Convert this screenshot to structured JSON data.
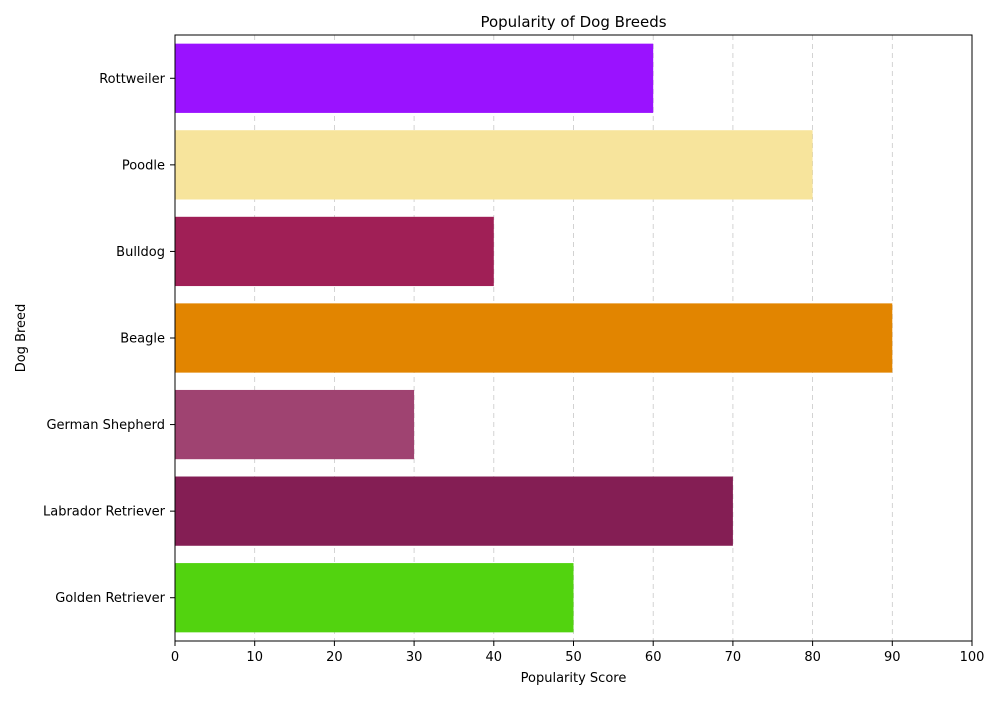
{
  "chart_data": {
    "type": "bar",
    "orientation": "horizontal",
    "title": "Popularity of Dog Breeds",
    "xlabel": "Popularity Score",
    "ylabel": "Dog Breed",
    "xlim": [
      0,
      100
    ],
    "xticks": [
      0,
      10,
      20,
      30,
      40,
      50,
      60,
      70,
      80,
      90,
      100
    ],
    "grid": "x-dashed",
    "categories": [
      "Golden Retriever",
      "Labrador Retriever",
      "German Shepherd",
      "Beagle",
      "Bulldog",
      "Poodle",
      "Rottweiler"
    ],
    "values": [
      50,
      70,
      30,
      90,
      40,
      80,
      60
    ],
    "colors": [
      "#52d30f",
      "#841e54",
      "#9f4371",
      "#e28500",
      "#a01f56",
      "#f7e49c",
      "#9a12ff"
    ]
  }
}
